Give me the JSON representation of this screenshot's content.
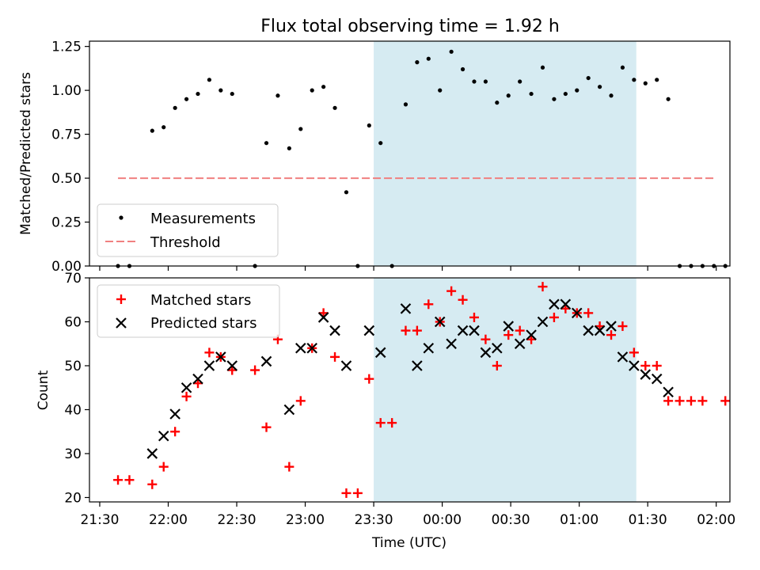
{
  "chart_data": [
    {
      "type": "scatter",
      "title": "Flux total observing time = 1.92 h",
      "xlabel": "",
      "ylabel": "Matched/Predicted stars",
      "xlim_minutes_after_2130": [
        -4.5,
        276
      ],
      "ylim": [
        0,
        1.28
      ],
      "yticks": [
        "0.00",
        "0.25",
        "0.50",
        "0.75",
        "1.00",
        "1.25"
      ],
      "xticks": [
        "21:30",
        "22:00",
        "22:30",
        "23:00",
        "23:30",
        "00:00",
        "00:30",
        "01:00",
        "01:30",
        "02:00"
      ],
      "shaded_region_minutes_after_2130": [
        120,
        235
      ],
      "shaded_color": "#add8e6",
      "legend": {
        "placement": "lower-left",
        "entries": [
          "Measurements",
          "Threshold"
        ]
      },
      "series": [
        {
          "name": "Measurements",
          "marker": "dot",
          "color": "#000000",
          "points": [
            [
              8,
              0
            ],
            [
              13,
              0
            ],
            [
              23,
              0.77
            ],
            [
              28,
              0.79
            ],
            [
              33,
              0.9
            ],
            [
              38,
              0.95
            ],
            [
              43,
              0.98
            ],
            [
              48,
              1.06
            ],
            [
              53,
              1.0
            ],
            [
              58,
              0.98
            ],
            [
              68,
              0
            ],
            [
              73,
              0.7
            ],
            [
              78,
              0.97
            ],
            [
              83,
              0.67
            ],
            [
              88,
              0.78
            ],
            [
              93,
              1.0
            ],
            [
              98,
              1.02
            ],
            [
              103,
              0.9
            ],
            [
              108,
              0.42
            ],
            [
              113,
              0
            ],
            [
              118,
              0.8
            ],
            [
              123,
              0.7
            ],
            [
              128,
              0
            ],
            [
              134,
              0.92
            ],
            [
              139,
              1.16
            ],
            [
              144,
              1.18
            ],
            [
              149,
              1.0
            ],
            [
              154,
              1.22
            ],
            [
              159,
              1.12
            ],
            [
              164,
              1.05
            ],
            [
              169,
              1.05
            ],
            [
              174,
              0.93
            ],
            [
              179,
              0.97
            ],
            [
              184,
              1.05
            ],
            [
              189,
              0.98
            ],
            [
              194,
              1.13
            ],
            [
              199,
              0.95
            ],
            [
              204,
              0.98
            ],
            [
              209,
              1.0
            ],
            [
              214,
              1.07
            ],
            [
              219,
              1.02
            ],
            [
              224,
              0.97
            ],
            [
              229,
              1.13
            ],
            [
              234,
              1.06
            ],
            [
              239,
              1.04
            ],
            [
              244,
              1.06
            ],
            [
              249,
              0.95
            ],
            [
              254,
              0
            ],
            [
              259,
              0
            ],
            [
              264,
              0
            ],
            [
              269,
              0
            ],
            [
              274,
              0
            ]
          ]
        },
        {
          "name": "Threshold",
          "line": "dashed",
          "color": "#f08080",
          "x_range_minutes_after_2130": [
            8,
            269
          ],
          "value": 0.5
        }
      ]
    },
    {
      "type": "scatter",
      "title": "",
      "xlabel": "Time (UTC)",
      "ylabel": "Count",
      "xlim_minutes_after_2130": [
        -4.5,
        276
      ],
      "ylim": [
        19,
        70
      ],
      "yticks": [
        "20",
        "30",
        "40",
        "50",
        "60",
        "70"
      ],
      "xticks": [
        "21:30",
        "22:00",
        "22:30",
        "23:00",
        "23:30",
        "00:00",
        "00:30",
        "01:00",
        "01:30",
        "02:00"
      ],
      "shaded_region_minutes_after_2130": [
        120,
        235
      ],
      "shaded_color": "#add8e6",
      "legend": {
        "placement": "top-left",
        "entries": [
          "Matched stars",
          "Predicted stars"
        ]
      },
      "series": [
        {
          "name": "Matched stars",
          "marker": "plus",
          "color": "#ff0000",
          "points": [
            [
              8,
              24
            ],
            [
              13,
              24
            ],
            [
              23,
              23
            ],
            [
              28,
              27
            ],
            [
              33,
              35
            ],
            [
              38,
              43
            ],
            [
              43,
              46
            ],
            [
              48,
              53
            ],
            [
              53,
              52
            ],
            [
              58,
              49
            ],
            [
              68,
              49
            ],
            [
              73,
              36
            ],
            [
              78,
              56
            ],
            [
              83,
              27
            ],
            [
              88,
              42
            ],
            [
              93,
              54
            ],
            [
              98,
              62
            ],
            [
              103,
              52
            ],
            [
              108,
              21
            ],
            [
              113,
              21
            ],
            [
              118,
              47
            ],
            [
              123,
              37
            ],
            [
              128,
              37
            ],
            [
              134,
              58
            ],
            [
              139,
              58
            ],
            [
              144,
              64
            ],
            [
              149,
              60
            ],
            [
              154,
              67
            ],
            [
              159,
              65
            ],
            [
              164,
              61
            ],
            [
              169,
              56
            ],
            [
              174,
              50
            ],
            [
              179,
              57
            ],
            [
              184,
              58
            ],
            [
              189,
              56
            ],
            [
              194,
              68
            ],
            [
              199,
              61
            ],
            [
              204,
              63
            ],
            [
              209,
              62
            ],
            [
              214,
              62
            ],
            [
              219,
              59
            ],
            [
              224,
              57
            ],
            [
              229,
              59
            ],
            [
              234,
              53
            ],
            [
              239,
              50
            ],
            [
              244,
              50
            ],
            [
              249,
              42
            ],
            [
              254,
              42
            ],
            [
              259,
              42
            ],
            [
              264,
              42
            ],
            [
              274,
              42
            ]
          ]
        },
        {
          "name": "Predicted stars",
          "marker": "x",
          "color": "#000000",
          "points": [
            [
              23,
              30
            ],
            [
              28,
              34
            ],
            [
              33,
              39
            ],
            [
              38,
              45
            ],
            [
              43,
              47
            ],
            [
              48,
              50
            ],
            [
              53,
              52
            ],
            [
              58,
              50
            ],
            [
              73,
              51
            ],
            [
              83,
              40
            ],
            [
              88,
              54
            ],
            [
              93,
              54
            ],
            [
              98,
              61
            ],
            [
              103,
              58
            ],
            [
              108,
              50
            ],
            [
              118,
              58
            ],
            [
              123,
              53
            ],
            [
              134,
              63
            ],
            [
              139,
              50
            ],
            [
              144,
              54
            ],
            [
              149,
              60
            ],
            [
              154,
              55
            ],
            [
              159,
              58
            ],
            [
              164,
              58
            ],
            [
              169,
              53
            ],
            [
              174,
              54
            ],
            [
              179,
              59
            ],
            [
              184,
              55
            ],
            [
              189,
              57
            ],
            [
              194,
              60
            ],
            [
              199,
              64
            ],
            [
              204,
              64
            ],
            [
              209,
              62
            ],
            [
              214,
              58
            ],
            [
              219,
              58
            ],
            [
              224,
              59
            ],
            [
              229,
              52
            ],
            [
              234,
              50
            ],
            [
              239,
              48
            ],
            [
              244,
              47
            ],
            [
              249,
              44
            ]
          ]
        }
      ]
    }
  ]
}
